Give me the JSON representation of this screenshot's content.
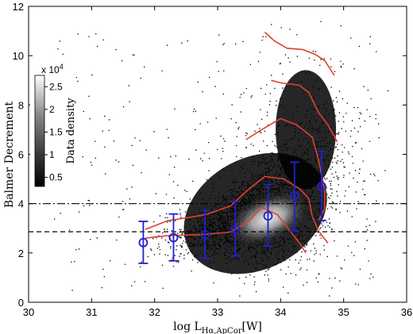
{
  "chart_data": {
    "type": "scatter",
    "title": "",
    "xlabel": "log L",
    "xlabel_sub": "Hα,ApCor",
    "xlabel_unit": "[W]",
    "ylabel": "Balmer Decrement",
    "xlim": [
      30,
      36
    ],
    "ylim": [
      0,
      12
    ],
    "xticks": [
      "30",
      "31",
      "32",
      "33",
      "34",
      "35",
      "36"
    ],
    "yticks": [
      "0",
      "2",
      "4",
      "6",
      "8",
      "10",
      "12"
    ],
    "reference_lines": [
      {
        "style": "dash-dot",
        "y": 4.0
      },
      {
        "style": "dashed",
        "y": 2.86
      }
    ],
    "binned_medians": {
      "color": "#2020d0",
      "points": [
        {
          "x": 31.82,
          "y": 2.42,
          "err_low": 1.58,
          "err_high": 3.28
        },
        {
          "x": 32.3,
          "y": 2.62,
          "err_low": 1.68,
          "err_high": 3.58
        },
        {
          "x": 32.8,
          "y": 2.74,
          "err_low": 1.78,
          "err_high": 3.72
        },
        {
          "x": 33.28,
          "y": 2.96,
          "err_low": 1.88,
          "err_high": 4.08
        },
        {
          "x": 33.8,
          "y": 3.5,
          "err_low": 2.28,
          "err_high": 4.78
        },
        {
          "x": 34.22,
          "y": 4.32,
          "err_low": 2.88,
          "err_high": 5.68
        },
        {
          "x": 34.65,
          "y": 4.7,
          "err_low": 3.32,
          "err_high": 6.12
        }
      ]
    },
    "contours": {
      "color": "#e04030",
      "lines": [
        [
          [
            33.75,
            10.95
          ],
          [
            33.9,
            10.6
          ],
          [
            34.1,
            10.3
          ],
          [
            34.35,
            10.25
          ],
          [
            34.55,
            10.05
          ],
          [
            34.7,
            9.8
          ],
          [
            34.85,
            9.2
          ]
        ],
        [
          [
            33.85,
            9.0
          ],
          [
            34.0,
            8.9
          ],
          [
            34.3,
            8.8
          ],
          [
            34.45,
            8.5
          ],
          [
            34.6,
            7.7
          ],
          [
            34.75,
            7.2
          ],
          [
            34.9,
            6.5
          ]
        ],
        [
          [
            33.45,
            6.6
          ],
          [
            33.7,
            7.0
          ],
          [
            34.0,
            7.45
          ],
          [
            34.25,
            7.2
          ],
          [
            34.5,
            6.7
          ],
          [
            34.6,
            5.8
          ],
          [
            34.7,
            4.5
          ],
          [
            34.7,
            3.8
          ],
          [
            34.6,
            3.3
          ]
        ],
        [
          [
            31.85,
            2.95
          ],
          [
            32.2,
            3.3
          ],
          [
            32.8,
            3.55
          ],
          [
            33.2,
            3.9
          ],
          [
            33.5,
            4.6
          ],
          [
            33.75,
            5.1
          ],
          [
            34.05,
            5.0
          ],
          [
            34.3,
            4.6
          ],
          [
            34.45,
            4.2
          ],
          [
            34.5,
            3.5
          ],
          [
            34.6,
            2.9
          ],
          [
            34.75,
            2.4
          ]
        ],
        [
          [
            31.85,
            2.6
          ],
          [
            32.2,
            2.7
          ],
          [
            32.8,
            2.75
          ],
          [
            33.2,
            2.85
          ],
          [
            33.5,
            3.3
          ],
          [
            33.7,
            3.85
          ],
          [
            33.95,
            3.55
          ],
          [
            34.1,
            3.05
          ],
          [
            34.3,
            2.4
          ],
          [
            34.4,
            2.0
          ]
        ]
      ]
    },
    "colorbar": {
      "label": "Data density",
      "multiplier": "x 10",
      "multiplier_exp": "4",
      "ticks": [
        "2.5",
        "2",
        "1.5",
        "1",
        "0.5"
      ],
      "tick_values": [
        2.5,
        2.0,
        1.5,
        1.0,
        0.5
      ],
      "range": [
        0.3,
        2.75
      ]
    }
  }
}
